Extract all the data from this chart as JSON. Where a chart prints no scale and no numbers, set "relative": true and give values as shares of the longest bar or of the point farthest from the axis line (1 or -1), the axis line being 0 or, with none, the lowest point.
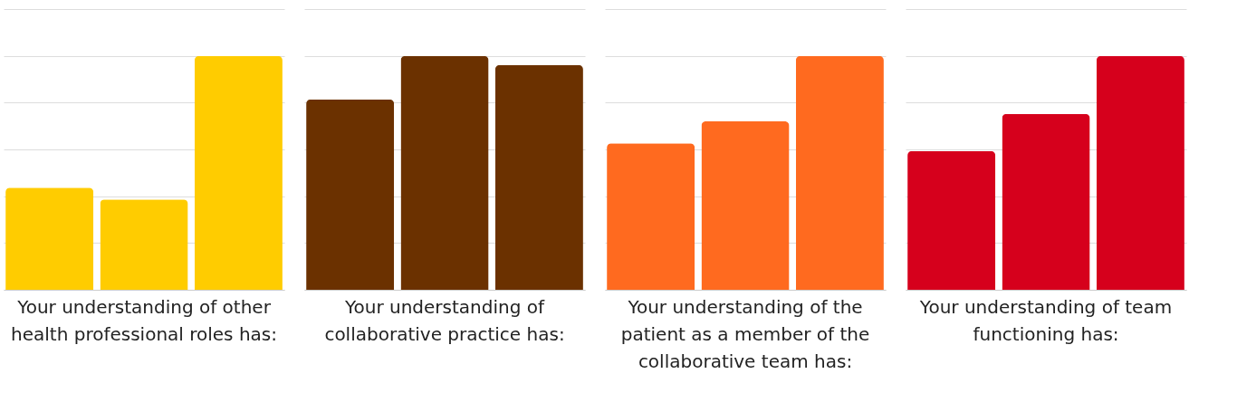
{
  "chart_data": [
    {
      "type": "bar",
      "title": "Your understanding of other\nhealth professional roles has:",
      "categories": [
        null,
        null,
        null
      ],
      "relative": true,
      "grid": "y",
      "tick_labels": false,
      "series": [
        {
          "color": "#ffcc00",
          "values": [
            0.436,
            0.386,
            1
          ]
        }
      ]
    },
    {
      "type": "bar",
      "title": "Your understanding of\ncollaborative practice has:",
      "categories": [
        null,
        null,
        null
      ],
      "relative": true,
      "grid": "y",
      "tick_labels": false,
      "series": [
        {
          "color": "#6b3100",
          "values": [
            0.814,
            1,
            0.961
          ]
        }
      ]
    },
    {
      "type": "bar",
      "title": "Your understanding of the\npatient as a member of the\ncollaborative team has:",
      "categories": [
        null,
        null,
        null
      ],
      "relative": true,
      "grid": "y",
      "tick_labels": false,
      "series": [
        {
          "color": "#ff6a1f",
          "values": [
            0.626,
            0.72,
            1
          ]
        }
      ]
    },
    {
      "type": "bar",
      "title": "Your understanding of team\nfunctioning has:",
      "categories": [
        null,
        null,
        null
      ],
      "relative": true,
      "grid": "y",
      "tick_labels": false,
      "series": [
        {
          "color": "#d6001c",
          "values": [
            0.593,
            0.752,
            1
          ]
        }
      ]
    }
  ]
}
